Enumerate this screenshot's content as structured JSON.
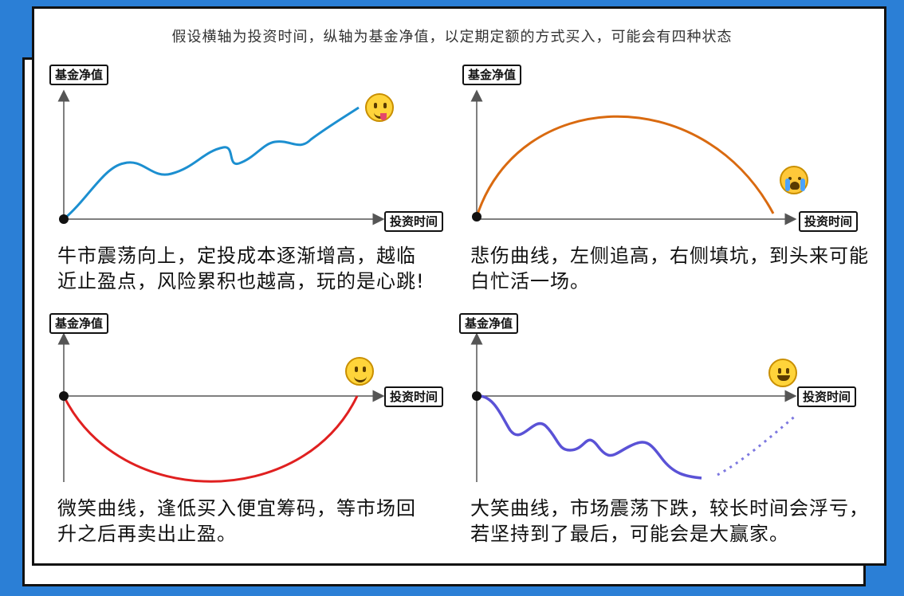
{
  "header": {
    "text": "假设横轴为投资时间，纵轴为基金净值，以定期定额的方式买入，可能会有四种状态"
  },
  "panels": [
    {
      "y_label": "基金净值",
      "x_label": "投资时间",
      "emoji": "yum-face-icon",
      "curve_color": "#1c8fd0",
      "description": "牛市震荡向上，定投成本逐渐增高，越临近止盈点，风险累积也越高，玩的是心跳!"
    },
    {
      "y_label": "基金净值",
      "x_label": "投资时间",
      "emoji": "crying-face-icon",
      "curve_color": "#d96a10",
      "description": "悲伤曲线，左侧追高，右侧填坑，到头来可能白忙活一场。"
    },
    {
      "y_label": "基金净值",
      "x_label": "投资时间",
      "emoji": "smiling-face-icon",
      "curve_color": "#e02020",
      "description": "微笑曲线，逢低买入便宜筹码，等市场回升之后再卖出止盈。"
    },
    {
      "y_label": "基金净值",
      "x_label": "投资时间",
      "emoji": "grinning-face-icon",
      "curve_color": "#5a52d6",
      "description": "大笑曲线，市场震荡下跌，较长时间会浮亏，若坚持到了最后，可能会是大赢家。"
    }
  ]
}
